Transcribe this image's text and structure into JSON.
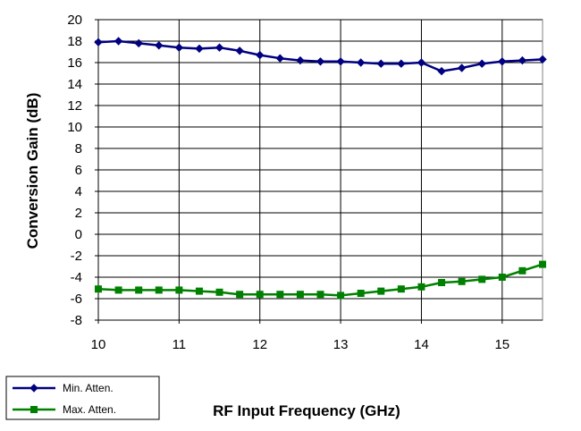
{
  "chart_data": {
    "type": "line",
    "xlabel": "RF Input Frequency (GHz)",
    "ylabel": "Conversion Gain (dB)",
    "xlim": [
      10,
      15.5
    ],
    "ylim": [
      -8,
      20
    ],
    "x_ticks": [
      10,
      11,
      12,
      13,
      14,
      15
    ],
    "y_ticks": [
      -8,
      -6,
      -4,
      -2,
      0,
      2,
      4,
      6,
      8,
      10,
      12,
      14,
      16,
      18,
      20
    ],
    "grid": true,
    "legend_position": "bottom-left",
    "x": [
      10,
      10.25,
      10.5,
      10.75,
      11,
      11.25,
      11.5,
      11.75,
      12,
      12.25,
      12.5,
      12.75,
      13,
      13.25,
      13.5,
      13.75,
      14,
      14.25,
      14.5,
      14.75,
      15,
      15.25,
      15.5
    ],
    "series": [
      {
        "name": "Min. Atten.",
        "color": "#000080",
        "marker": "diamond",
        "values": [
          17.9,
          18.0,
          17.8,
          17.6,
          17.4,
          17.3,
          17.4,
          17.1,
          16.7,
          16.4,
          16.2,
          16.1,
          16.1,
          16.0,
          15.9,
          15.9,
          16.0,
          15.2,
          15.5,
          15.9,
          16.1,
          16.2,
          16.3
        ]
      },
      {
        "name": "Max. Atten.",
        "color": "#008000",
        "marker": "square",
        "values": [
          -5.1,
          -5.2,
          -5.2,
          -5.2,
          -5.2,
          -5.3,
          -5.4,
          -5.6,
          -5.6,
          -5.6,
          -5.6,
          -5.6,
          -5.7,
          -5.5,
          -5.3,
          -5.1,
          -4.9,
          -4.5,
          -4.4,
          -4.2,
          -4.0,
          -3.4,
          -2.8
        ]
      }
    ]
  }
}
